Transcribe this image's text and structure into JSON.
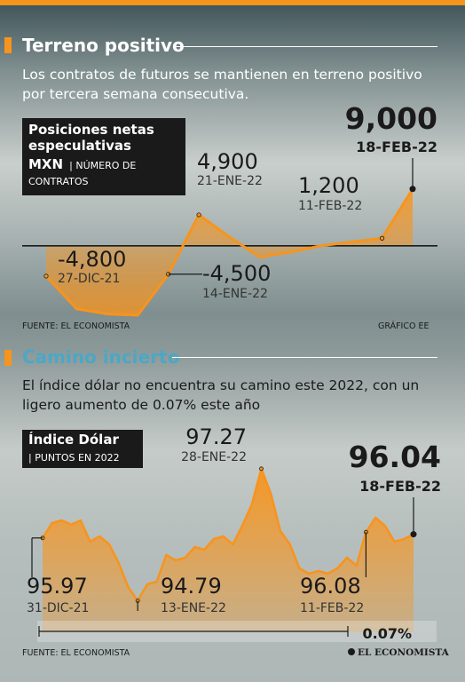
{
  "colors": {
    "accent": "#f7941d",
    "title1": "#ffffff",
    "title2": "#4aa8c6",
    "ink": "#1a1a1a"
  },
  "section1": {
    "title": "Terreno positivo",
    "intro": "Los contratos de futuros se mantienen en terreno positivo por tercera semana consecutiva.",
    "box_title": "Posiciones netas especulativas",
    "box_title_bold2": "MXN",
    "box_unit_a": "| NÚMERO DE",
    "box_unit_b": "CONTRATOS",
    "source_left": "FUENTE: EL ECONOMISTA",
    "source_right": "GRÁFICO EE"
  },
  "section2": {
    "title": "Camino incierto",
    "intro": "El índice dólar no encuentra su camino este 2022, con un ligero aumento de 0.07% este año",
    "box_title": "Índice Dólar",
    "box_unit": "| PUNTOS EN 2022",
    "change_label": "0.07%",
    "source_left": "FUENTE: EL ECONOMISTA",
    "brand": "EL ECONOMISTA"
  },
  "chart_data": [
    {
      "type": "area",
      "title": "Posiciones netas especulativas MXN",
      "ylabel": "NÚMERO DE CONTRATOS",
      "baseline": 0,
      "ylim": [
        -11000,
        11500
      ],
      "y": [
        -4800,
        -10000,
        -10800,
        -11000,
        -4500,
        4900,
        1400,
        -1800,
        -1000,
        0,
        600,
        1200,
        9000
      ],
      "annotations": [
        {
          "index": 0,
          "value": "-4,800",
          "date": "27-DIC-21"
        },
        {
          "index": 4,
          "value": "-4,500",
          "date": "14-ENE-22"
        },
        {
          "index": 5,
          "value": "4,900",
          "date": "21-ENE-22"
        },
        {
          "index": 11,
          "value": "1,200",
          "date": "11-FEB-22"
        },
        {
          "index": 12,
          "value": "9,000",
          "date": "18-FEB-22"
        }
      ]
    },
    {
      "type": "area",
      "title": "Índice Dólar",
      "ylabel": "PUNTOS EN 2022",
      "ylim": [
        94.6,
        97.4
      ],
      "y": [
        95.97,
        96.25,
        96.3,
        96.22,
        96.3,
        95.9,
        96.0,
        95.85,
        95.5,
        95.05,
        94.79,
        95.1,
        95.15,
        95.65,
        95.55,
        95.6,
        95.8,
        95.75,
        95.95,
        96.0,
        95.85,
        96.2,
        96.6,
        97.27,
        96.8,
        96.1,
        95.85,
        95.4,
        95.3,
        95.35,
        95.3,
        95.4,
        95.6,
        95.45,
        96.08,
        96.35,
        96.2,
        95.9,
        95.95,
        96.04
      ],
      "annotations": [
        {
          "index": 0,
          "value": "95.97",
          "date": "31-DIC-21"
        },
        {
          "index": 10,
          "value": "94.79",
          "date": "13-ENE-22"
        },
        {
          "index": 23,
          "value": "97.27",
          "date": "28-ENE-22"
        },
        {
          "index": 34,
          "value": "96.08",
          "date": "11-FEB-22"
        },
        {
          "index": 39,
          "value": "96.04",
          "date": "18-FEB-22"
        }
      ]
    }
  ]
}
